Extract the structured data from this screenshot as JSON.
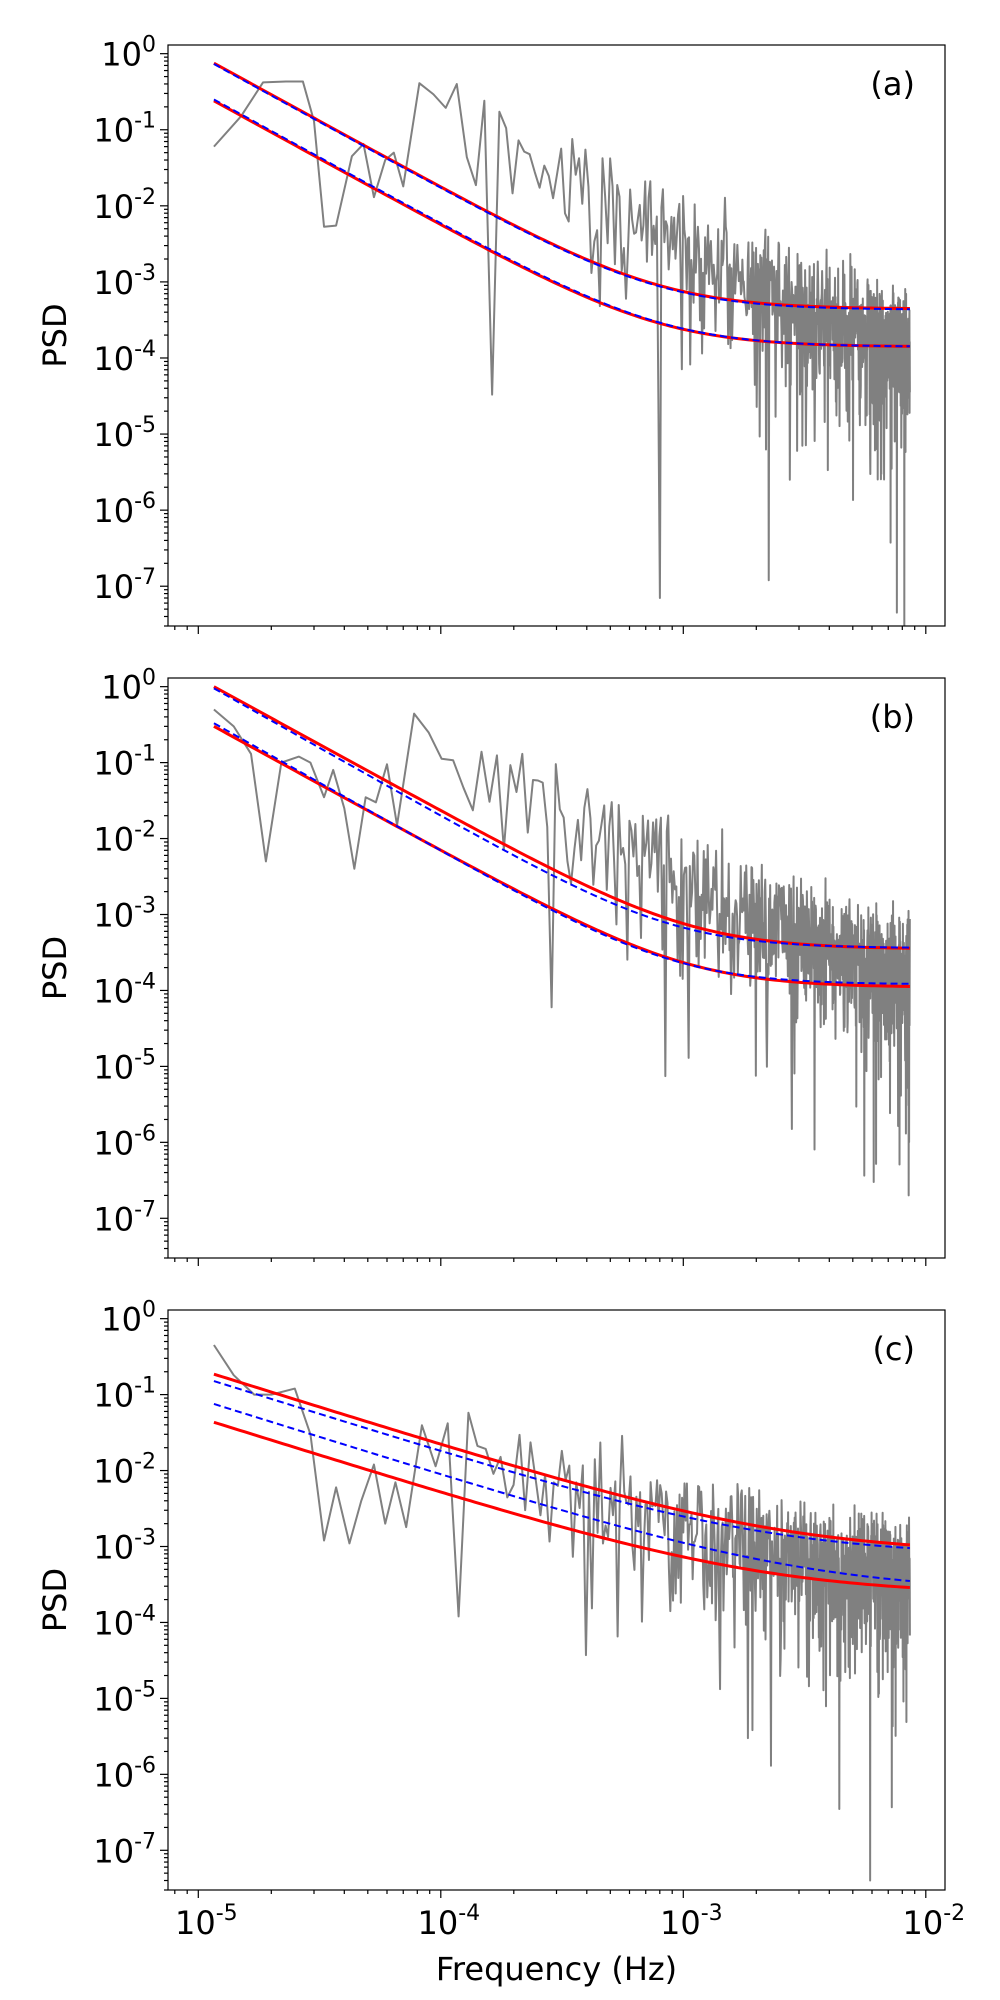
{
  "chart_data": [
    {
      "type": "line",
      "panel": "(a)",
      "xscale": "log",
      "yscale": "log",
      "xlim": [
        7.5e-06,
        0.012
      ],
      "ylim": [
        3e-08,
        1.3
      ],
      "xlabel": "",
      "ylabel": "PSD",
      "xticks": [
        1e-05,
        0.0001,
        0.001,
        0.01
      ],
      "yticks": [
        1,
        0.1,
        0.01,
        0.001,
        0.0001,
        1e-05,
        1e-06,
        1e-07
      ],
      "yticklabels": [
        [
          "10",
          "0"
        ],
        [
          "10",
          "-1"
        ],
        [
          "10",
          "-2"
        ],
        [
          "10",
          "-3"
        ],
        [
          "10",
          "-4"
        ],
        [
          "10",
          "-5"
        ],
        [
          "10",
          "-6"
        ],
        [
          "10",
          "-7"
        ]
      ],
      "legend": "none",
      "noise_seed": 11,
      "series": [
        {
          "name": "periodogram",
          "color": "#808080",
          "style": "solid",
          "low_freq_points": [
            [
              1.16e-05,
              0.06
            ],
            [
              1.5e-05,
              0.15
            ],
            [
              1.85e-05,
              0.42
            ],
            [
              2.3e-05,
              0.43
            ],
            [
              2.7e-05,
              0.43
            ],
            [
              3e-05,
              0.13
            ],
            [
              3.3e-05,
              0.0053
            ],
            [
              3.7e-05,
              0.0055
            ],
            [
              4.3e-05,
              0.045
            ],
            [
              4.8e-05,
              0.065
            ],
            [
              5.3e-05,
              0.013
            ],
            [
              5.9e-05,
              0.04
            ],
            [
              6.4e-05,
              0.05
            ],
            [
              7e-05,
              0.018
            ]
          ],
          "bulk_slope": -1.75,
          "bulk_white_level": 0.00012,
          "deep_dips": [
            [
              0.000168,
              3.3e-05
            ],
            [
              0.000805,
              7e-08
            ],
            [
              0.00225,
              1.2e-07
            ],
            [
              0.0076,
              4.5e-08
            ]
          ]
        },
        {
          "name": "fit model upper",
          "color": "#ff0000",
          "style": "solid",
          "amplitude": 0.75,
          "slope": -1.75,
          "white_level": 0.00044
        },
        {
          "name": "fit model lower",
          "color": "#ff0000",
          "style": "solid",
          "amplitude": 0.24,
          "slope": -1.75,
          "white_level": 0.00014
        },
        {
          "name": "reference upper",
          "color": "#0000ff",
          "style": "dashed",
          "amplitude": 0.73,
          "slope": -1.75,
          "white_level": 0.00043
        },
        {
          "name": "reference lower",
          "color": "#0000ff",
          "style": "dashed",
          "amplitude": 0.25,
          "slope": -1.75,
          "white_level": 0.00014
        }
      ]
    },
    {
      "type": "line",
      "panel": "(b)",
      "xscale": "log",
      "yscale": "log",
      "xlim": [
        7.5e-06,
        0.012
      ],
      "ylim": [
        3e-08,
        1.3
      ],
      "xlabel": "",
      "ylabel": "PSD",
      "xticks": [
        1e-05,
        0.0001,
        0.001,
        0.01
      ],
      "yticks": [
        1,
        0.1,
        0.01,
        0.001,
        0.0001,
        1e-05,
        1e-06,
        1e-07
      ],
      "yticklabels": [
        [
          "10",
          "0"
        ],
        [
          "10",
          "-1"
        ],
        [
          "10",
          "-2"
        ],
        [
          "10",
          "-3"
        ],
        [
          "10",
          "-4"
        ],
        [
          "10",
          "-5"
        ],
        [
          "10",
          "-6"
        ],
        [
          "10",
          "-7"
        ]
      ],
      "legend": "none",
      "noise_seed": 23,
      "series": [
        {
          "name": "periodogram",
          "color": "#808080",
          "style": "solid",
          "low_freq_points": [
            [
              1.16e-05,
              0.5
            ],
            [
              1.4e-05,
              0.3
            ],
            [
              1.65e-05,
              0.13
            ],
            [
              1.9e-05,
              0.005
            ],
            [
              2.2e-05,
              0.1
            ],
            [
              2.6e-05,
              0.12
            ],
            [
              2.9e-05,
              0.1
            ],
            [
              3.3e-05,
              0.035
            ],
            [
              3.6e-05,
              0.08
            ],
            [
              4e-05,
              0.025
            ],
            [
              4.4e-05,
              0.004
            ],
            [
              4.9e-05,
              0.035
            ],
            [
              5.4e-05,
              0.03
            ],
            [
              6e-05,
              0.095
            ],
            [
              6.6e-05,
              0.015
            ]
          ],
          "bulk_slope": -1.75,
          "bulk_white_level": 0.00011,
          "deep_dips": [
            [
              0.00029,
              6e-05
            ],
            [
              0.0028,
              1.5e-06
            ],
            [
              0.0061,
              3e-07
            ],
            [
              0.0085,
              2e-07
            ]
          ]
        },
        {
          "name": "fit model upper",
          "color": "#ff0000",
          "style": "solid",
          "amplitude": 1.0,
          "slope": -1.75,
          "white_level": 0.00035
        },
        {
          "name": "fit model lower",
          "color": "#ff0000",
          "style": "solid",
          "amplitude": 0.3,
          "slope": -1.75,
          "white_level": 0.00011
        },
        {
          "name": "reference upper",
          "color": "#0000ff",
          "style": "dashed",
          "amplitude": 0.95,
          "slope": -1.8,
          "white_level": 0.00036
        },
        {
          "name": "reference lower",
          "color": "#0000ff",
          "style": "dashed",
          "amplitude": 0.33,
          "slope": -1.8,
          "white_level": 0.00012
        }
      ]
    },
    {
      "type": "line",
      "panel": "(c)",
      "xscale": "log",
      "yscale": "log",
      "xlim": [
        7.5e-06,
        0.012
      ],
      "ylim": [
        3e-08,
        1.3
      ],
      "xlabel": "Frequency (Hz)",
      "ylabel": "PSD",
      "xticks": [
        1e-05,
        0.0001,
        0.001,
        0.01
      ],
      "xticklabels": [
        [
          "10",
          "-5"
        ],
        [
          "10",
          "-4"
        ],
        [
          "10",
          "-3"
        ],
        [
          "10",
          "-2"
        ]
      ],
      "yticks": [
        1,
        0.1,
        0.01,
        0.001,
        0.0001,
        1e-05,
        1e-06,
        1e-07
      ],
      "yticklabels": [
        [
          "10",
          "0"
        ],
        [
          "10",
          "-1"
        ],
        [
          "10",
          "-2"
        ],
        [
          "10",
          "-3"
        ],
        [
          "10",
          "-4"
        ],
        [
          "10",
          "-5"
        ],
        [
          "10",
          "-6"
        ],
        [
          "10",
          "-7"
        ]
      ],
      "legend": "none",
      "noise_seed": 37,
      "series": [
        {
          "name": "periodogram",
          "color": "#808080",
          "style": "solid",
          "low_freq_points": [
            [
              1.16e-05,
              0.45
            ],
            [
              1.4e-05,
              0.18
            ],
            [
              1.7e-05,
              0.1
            ],
            [
              2e-05,
              0.1
            ],
            [
              2.5e-05,
              0.12
            ],
            [
              2.9e-05,
              0.03
            ],
            [
              3.3e-05,
              0.0012
            ],
            [
              3.7e-05,
              0.006
            ],
            [
              4.2e-05,
              0.0011
            ],
            [
              4.7e-05,
              0.004
            ],
            [
              5.3e-05,
              0.012
            ],
            [
              5.9e-05,
              0.002
            ],
            [
              6.5e-05,
              0.007
            ],
            [
              7.2e-05,
              0.0018
            ]
          ],
          "bulk_slope": -1.0,
          "bulk_white_level": 0.00022,
          "deep_dips": [
            [
              0.000115,
              0.00012
            ],
            [
              0.00185,
              3e-06
            ],
            [
              0.0023,
              1.3e-06
            ],
            [
              0.0044,
              3.5e-07
            ],
            [
              0.0059,
              4e-08
            ]
          ]
        },
        {
          "name": "fit model upper",
          "color": "#ff0000",
          "style": "solid",
          "amplitude": 0.185,
          "slope": -1.0,
          "white_level": 0.0008
        },
        {
          "name": "fit model lower",
          "color": "#ff0000",
          "style": "solid",
          "amplitude": 0.043,
          "slope": -1.0,
          "white_level": 0.00023
        },
        {
          "name": "reference upper",
          "color": "#0000ff",
          "style": "dashed",
          "amplitude": 0.15,
          "slope": -1.0,
          "white_level": 0.00075
        },
        {
          "name": "reference lower",
          "color": "#0000ff",
          "style": "dashed",
          "amplitude": 0.075,
          "slope": -1.0,
          "white_level": 0.00025
        }
      ]
    }
  ]
}
